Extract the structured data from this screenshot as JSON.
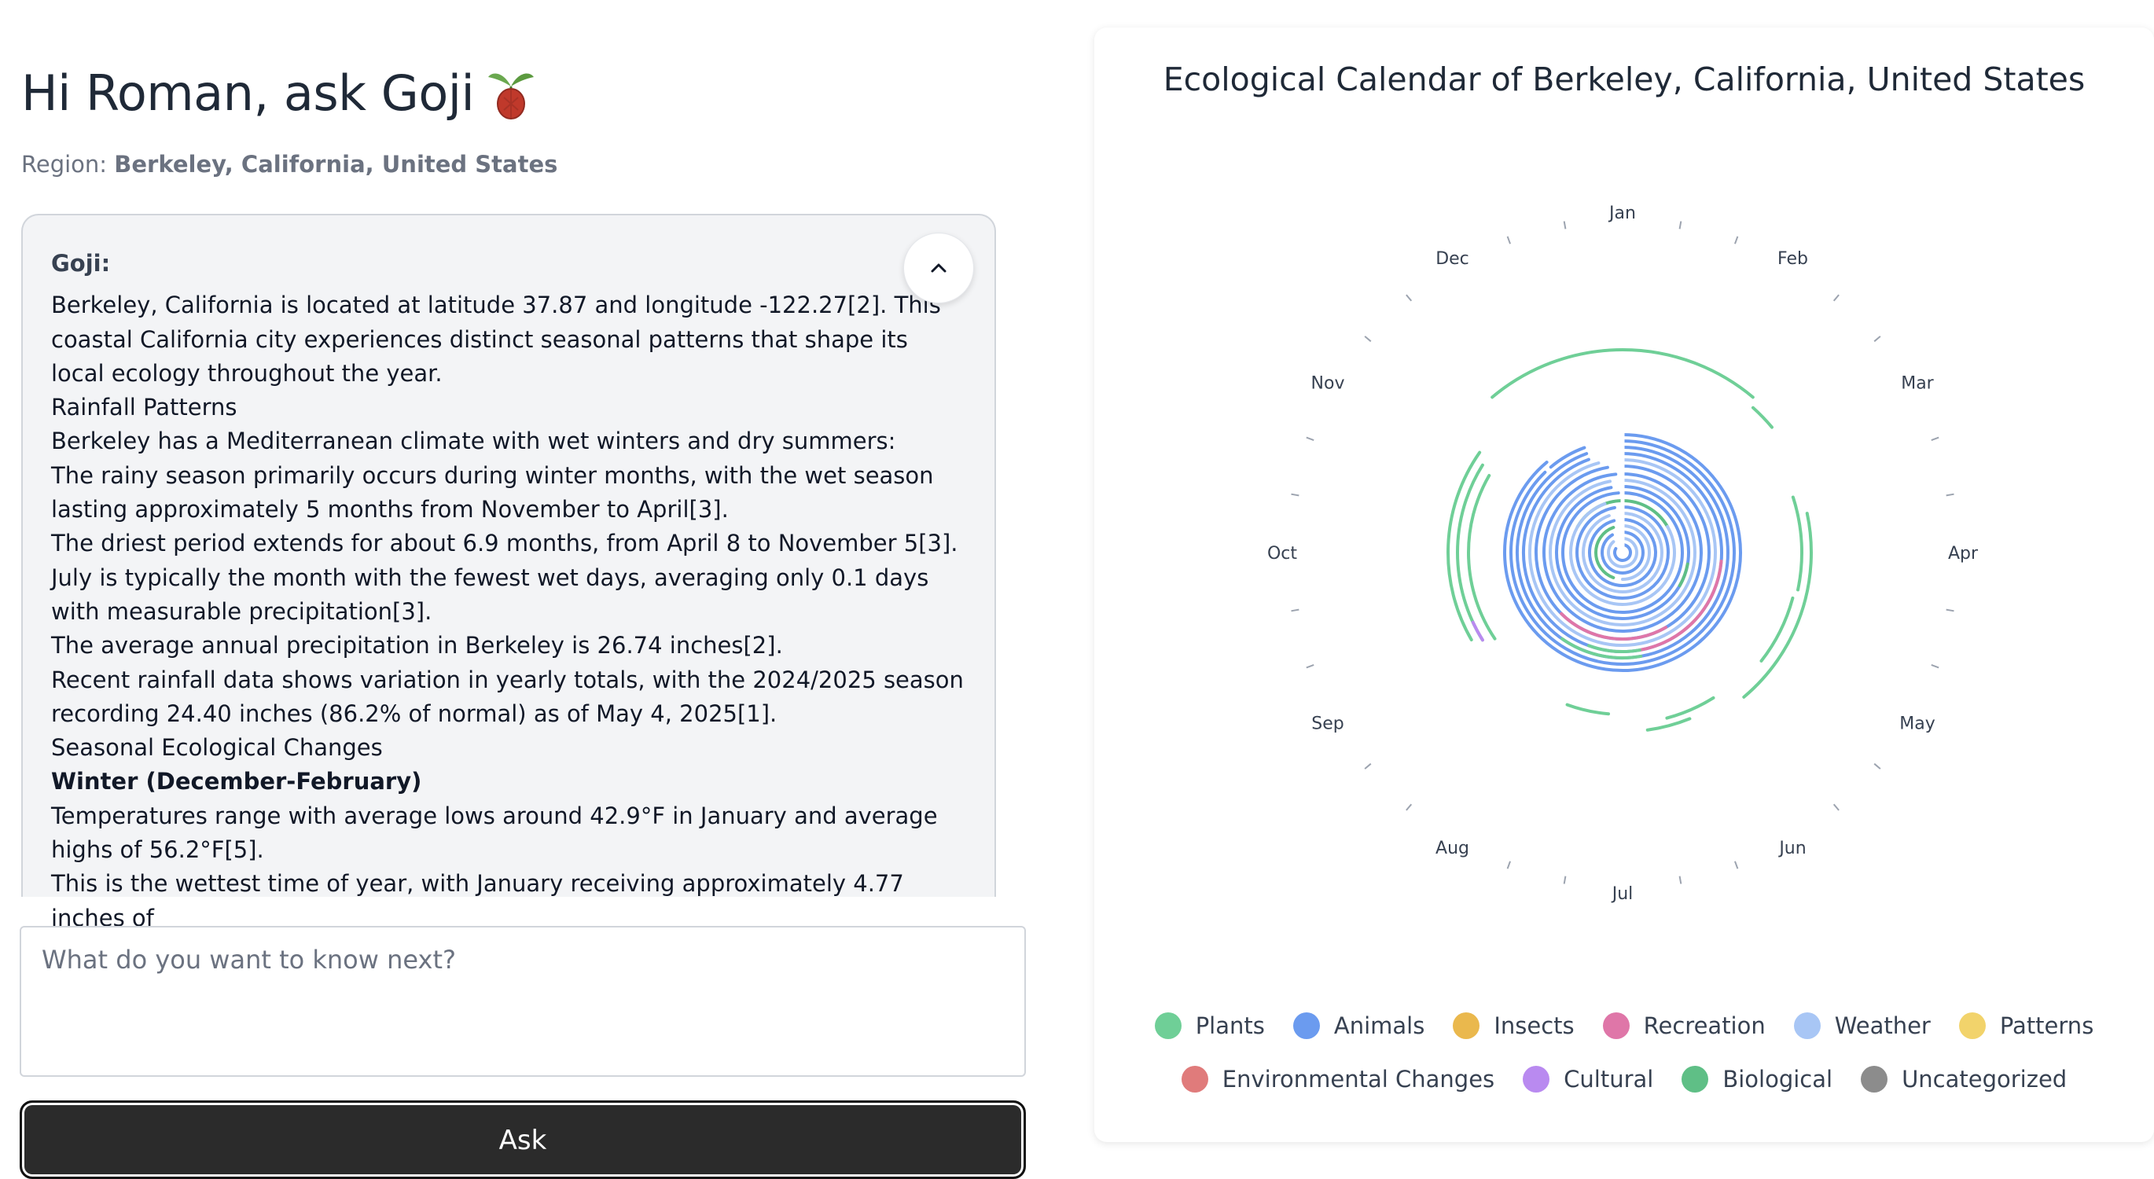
{
  "header": {
    "greeting": "Hi Roman, ask Goji",
    "region_label": "Region:",
    "region_value": "Berkeley, California, United States"
  },
  "chat": {
    "speaker": "Goji:",
    "collapse_icon": "chevron-up-icon",
    "lines": [
      {
        "text": "Berkeley, California is located at latitude 37.87 and longitude -122.27[2]. This coastal California city experiences distinct seasonal patterns that shape its local ecology throughout the year.",
        "bold": false
      },
      {
        "text": "Rainfall Patterns",
        "bold": false
      },
      {
        "text": "Berkeley has a Mediterranean climate with wet winters and dry summers:",
        "bold": false
      },
      {
        "text": "The rainy season primarily occurs during winter months, with the wet season lasting approximately 5 months from November to April[3].",
        "bold": false
      },
      {
        "text": "The driest period extends for about 6.9 months, from April 8 to November 5[3].",
        "bold": false
      },
      {
        "text": "July is typically the month with the fewest wet days, averaging only 0.1 days with measurable precipitation[3].",
        "bold": false
      },
      {
        "text": "The average annual precipitation in Berkeley is 26.74 inches[2].",
        "bold": false
      },
      {
        "text": "Recent rainfall data shows variation in yearly totals, with the 2024/2025 season recording 24.40 inches (86.2% of normal) as of May 4, 2025[1].",
        "bold": false
      },
      {
        "text": "Seasonal Ecological Changes",
        "bold": false
      },
      {
        "text": "Winter (December-February)",
        "bold": true
      },
      {
        "text": "Temperatures range with average lows around 42.9°F in January and average highs of 56.2°F[5].",
        "bold": false
      },
      {
        "text": "This is the wettest time of year, with January receiving approximately 4.77 inches of",
        "bold": false
      }
    ]
  },
  "input": {
    "placeholder": "What do you want to know next?",
    "value": ""
  },
  "ask_button": {
    "label": "Ask"
  },
  "calendar": {
    "title": "Ecological Calendar of Berkeley, California, United States",
    "months": [
      "Jan",
      "Feb",
      "Mar",
      "Apr",
      "May",
      "Jun",
      "Jul",
      "Aug",
      "Sep",
      "Oct",
      "Nov",
      "Dec"
    ],
    "colors": {
      "Plants": "#6fcf97",
      "Animals": "#6b9bef",
      "Insects": "#eab84d",
      "Recreation": "#df76a8",
      "Weather": "#a8c6f5",
      "Patterns": "#f2d36b",
      "Environmental Changes": "#e07b7b",
      "Cultural": "#b98af0",
      "Biological": "#5fbf86",
      "Uncategorized": "#8c8c8c"
    },
    "legend_rows": [
      [
        "Plants",
        "Animals",
        "Insects",
        "Recreation",
        "Weather",
        "Patterns"
      ],
      [
        "Environmental Changes",
        "Cultural",
        "Biological",
        "Uncategorized"
      ]
    ]
  }
}
